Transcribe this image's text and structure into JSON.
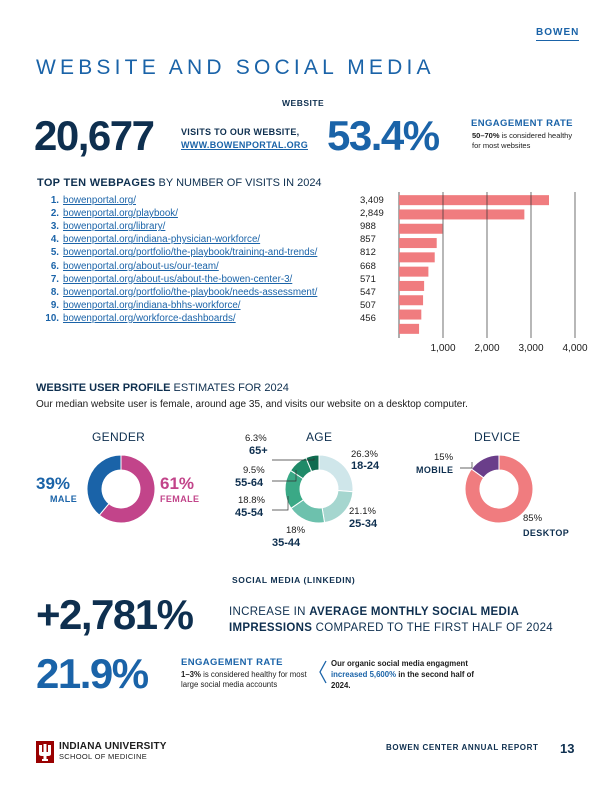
{
  "brand": "BOWEN",
  "title": "WEBSITE AND SOCIAL MEDIA",
  "website": {
    "section_label": "WEBSITE",
    "visits": "20,677",
    "visits_desc": "VISITS TO OUR WEBSITE,",
    "visits_url": "WWW.BOWENPORTAL.ORG",
    "engagement_rate": "53.4%",
    "engagement_head": "ENGAGEMENT RATE",
    "engagement_note_bold": "50–70%",
    "engagement_note": " is considered healthy for most websites"
  },
  "top10": {
    "heading_bold": "TOP TEN WEBPAGES",
    "heading_rest": " BY NUMBER OF VISITS IN 2024",
    "pages": [
      {
        "rank": "1.",
        "url": "bowenportal.org/",
        "visits": "3,409"
      },
      {
        "rank": "2.",
        "url": "bowenportal.org/playbook/",
        "visits": "2,849"
      },
      {
        "rank": "3.",
        "url": "bowenportal.org/library/",
        "visits": "988"
      },
      {
        "rank": "4.",
        "url": "bowenportal.org/indiana-physician-workforce/",
        "visits": "857"
      },
      {
        "rank": "5.",
        "url": "bowenportal.org/portfolio/the-playbook/training-and-trends/",
        "visits": "812"
      },
      {
        "rank": "6.",
        "url": "bowenportal.org/about-us/our-team/",
        "visits": "668"
      },
      {
        "rank": "7.",
        "url": "bowenportal.org/about-us/about-the-bowen-center-3/",
        "visits": "571"
      },
      {
        "rank": "8.",
        "url": "bowenportal.org/portfolio/the-playbook/needs-assessment/",
        "visits": "547"
      },
      {
        "rank": "9.",
        "url": "bowenportal.org/indiana-bhhs-workforce/",
        "visits": "507"
      },
      {
        "rank": "10.",
        "url": "bowenportal.org/workforce-dashboards/",
        "visits": "456"
      }
    ]
  },
  "chart_data": {
    "type": "bar",
    "orientation": "horizontal",
    "categories": [
      "bowenportal.org/",
      "bowenportal.org/playbook/",
      "bowenportal.org/library/",
      "bowenportal.org/indiana-physician-workforce/",
      "bowenportal.org/portfolio/the-playbook/training-and-trends/",
      "bowenportal.org/about-us/our-team/",
      "bowenportal.org/about-us/about-the-bowen-center-3/",
      "bowenportal.org/portfolio/the-playbook/needs-assessment/",
      "bowenportal.org/indiana-bhhs-workforce/",
      "bowenportal.org/workforce-dashboards/"
    ],
    "values": [
      3409,
      2849,
      988,
      857,
      812,
      668,
      571,
      547,
      507,
      456
    ],
    "xlim": [
      0,
      4000
    ],
    "xticks": [
      "1,000",
      "2,000",
      "3,000",
      "4,000"
    ],
    "xtick_values": [
      1000,
      2000,
      3000,
      4000
    ],
    "bar_color": "#f07c7f"
  },
  "profile": {
    "heading_bold": "WEBSITE USER PROFILE",
    "heading_rest": " ESTIMATES FOR 2024",
    "subtitle": "Our median website user is female, around age 35, and visits our website on a desktop computer.",
    "gender": {
      "title": "GENDER",
      "male_pct": "39%",
      "male_label": "MALE",
      "male_value": 39,
      "male_color": "#1a63a8",
      "female_pct": "61%",
      "female_label": "FEMALE",
      "female_value": 61,
      "female_color": "#c2448a"
    },
    "age": {
      "title": "AGE",
      "segments": [
        {
          "range": "18-24",
          "pct": "26.3%",
          "value": 26.3,
          "color": "#cfe6ea"
        },
        {
          "range": "25-34",
          "pct": "21.1%",
          "value": 21.1,
          "color": "#a5d6cf"
        },
        {
          "range": "35-44",
          "pct": "18%",
          "value": 18,
          "color": "#6dc1ad"
        },
        {
          "range": "45-54",
          "pct": "18.8%",
          "value": 18.8,
          "color": "#3aa986"
        },
        {
          "range": "55-64",
          "pct": "9.5%",
          "value": 9.5,
          "color": "#1f8a68"
        },
        {
          "range": "65+",
          "pct": "6.3%",
          "value": 6.3,
          "color": "#0f6b4f"
        }
      ]
    },
    "device": {
      "title": "DEVICE",
      "mobile_pct": "15%",
      "mobile_label": "MOBILE",
      "mobile_value": 15,
      "mobile_color": "#6a3e8a",
      "desktop_pct": "85%",
      "desktop_label": "DESKTOP",
      "desktop_value": 85,
      "desktop_color": "#f07c7f"
    }
  },
  "social": {
    "section_label": "SOCIAL MEDIA (LINKEDIN)",
    "impressions": "+2,781%",
    "impr_line1_a": "INCREASE IN ",
    "impr_line1_b": "AVERAGE MONTHLY SOCIAL MEDIA",
    "impr_line2_a": "IMPRESSIONS",
    "impr_line2_b": " COMPARED TO THE FIRST HALF OF 2024",
    "engagement_rate": "21.9%",
    "engagement_head": "ENGAGEMENT RATE",
    "engagement_note_bold": "1–3%",
    "engagement_note": " is considered healthy for most large social media accounts",
    "organic_a": "Our organic social media engagment ",
    "organic_hl": "increased 5,600%",
    "organic_b": " in the second half of 2024."
  },
  "footer": {
    "university": "INDIANA UNIVERSITY",
    "school": "SCHOOL OF MEDICINE",
    "report": "BOWEN CENTER ANNUAL REPORT",
    "page": "13"
  }
}
